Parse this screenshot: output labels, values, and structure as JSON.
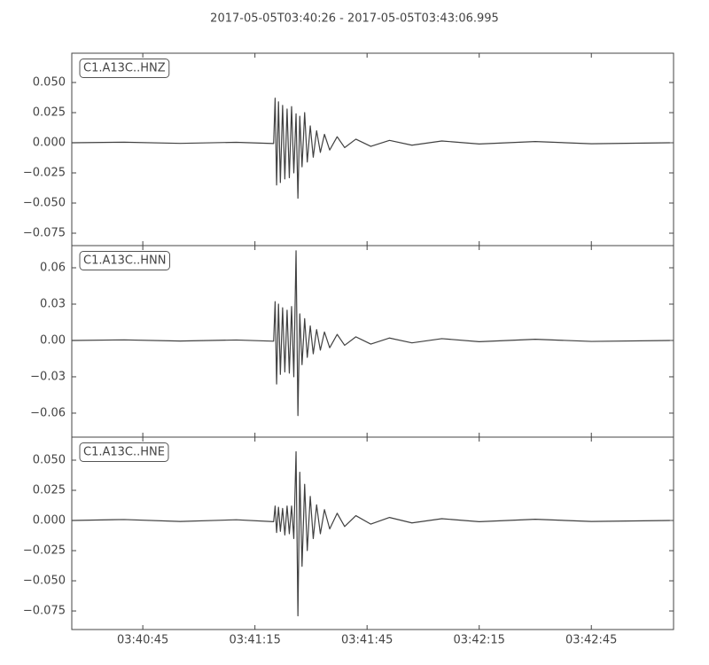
{
  "title": "2017-05-05T03:40:26  -  2017-05-05T03:43:06.995",
  "chart_data": [
    {
      "type": "line",
      "series": [
        {
          "name": "C1.A13C..HNZ",
          "color": "#404040",
          "x": [
            "03:40:26",
            "03:40:40",
            "03:40:55",
            "03:41:10",
            "03:41:20",
            "03:41:20.4",
            "03:41:20.8",
            "03:41:21.3",
            "03:41:21.8",
            "03:41:22.4",
            "03:41:23",
            "03:41:23.6",
            "03:41:24.2",
            "03:41:24.8",
            "03:41:25.4",
            "03:41:26",
            "03:41:26.5",
            "03:41:27",
            "03:41:27.6",
            "03:41:28.3",
            "03:41:29",
            "03:41:29.8",
            "03:41:30.6",
            "03:41:31.5",
            "03:41:32.5",
            "03:41:33.6",
            "03:41:35",
            "03:41:37",
            "03:41:39",
            "03:41:42",
            "03:41:46",
            "03:41:51",
            "03:41:57",
            "03:42:05",
            "03:42:15",
            "03:42:30",
            "03:42:45",
            "03:43:06"
          ],
          "values": [
            0,
            0.0005,
            -0.0005,
            0.0004,
            -0.0006,
            0.037,
            -0.035,
            0.034,
            -0.033,
            0.031,
            -0.03,
            0.028,
            -0.029,
            0.03,
            -0.025,
            0.024,
            -0.046,
            0.022,
            -0.02,
            0.025,
            -0.016,
            0.014,
            -0.012,
            0.01,
            -0.008,
            0.007,
            -0.006,
            0.005,
            -0.004,
            0.003,
            -0.003,
            0.002,
            -0.002,
            0.0015,
            -0.001,
            0.001,
            -0.0008,
            0
          ]
        }
      ],
      "ylim": [
        -0.0853,
        0.0743
      ],
      "yticks": [
        {
          "value": 0.05,
          "label": "0.050"
        },
        {
          "value": 0.025,
          "label": "0.025"
        },
        {
          "value": 0,
          "label": "0.000"
        },
        {
          "value": -0.025,
          "label": "−0.025"
        },
        {
          "value": -0.05,
          "label": "−0.050"
        },
        {
          "value": -0.075,
          "label": "−0.075"
        }
      ]
    },
    {
      "type": "line",
      "series": [
        {
          "name": "C1.A13C..HNN",
          "color": "#404040",
          "x": [
            "03:40:26",
            "03:40:40",
            "03:40:55",
            "03:41:10",
            "03:41:20",
            "03:41:20.4",
            "03:41:20.8",
            "03:41:21.3",
            "03:41:21.8",
            "03:41:22.4",
            "03:41:23",
            "03:41:23.6",
            "03:41:24.2",
            "03:41:24.8",
            "03:41:25.4",
            "03:41:26",
            "03:41:26.5",
            "03:41:27",
            "03:41:27.6",
            "03:41:28.3",
            "03:41:29",
            "03:41:29.8",
            "03:41:30.6",
            "03:41:31.5",
            "03:41:32.5",
            "03:41:33.6",
            "03:41:35",
            "03:41:37",
            "03:41:39",
            "03:41:42",
            "03:41:46",
            "03:41:51",
            "03:41:57",
            "03:42:05",
            "03:42:15",
            "03:42:30",
            "03:42:45",
            "03:43:06"
          ],
          "values": [
            0,
            0.0005,
            -0.0005,
            0.0004,
            -0.0006,
            0.032,
            -0.036,
            0.03,
            -0.028,
            0.027,
            -0.026,
            0.025,
            -0.027,
            0.028,
            -0.03,
            0.074,
            -0.062,
            0.022,
            -0.02,
            0.018,
            -0.014,
            0.012,
            -0.011,
            0.009,
            -0.008,
            0.007,
            -0.006,
            0.005,
            -0.004,
            0.003,
            -0.003,
            0.002,
            -0.002,
            0.0015,
            -0.001,
            0.001,
            -0.0008,
            0
          ]
        }
      ],
      "ylim": [
        -0.0798,
        0.0783
      ],
      "yticks": [
        0.06,
        0.03,
        {
          "value": 0,
          "label": "0.00"
        },
        {
          "value": -0.03,
          "label": "−0.03"
        },
        {
          "value": -0.06,
          "label": "−0.06"
        }
      ]
    },
    {
      "type": "line",
      "series": [
        {
          "name": "C1.A13C..HNE",
          "color": "#404040",
          "x": [
            "03:40:26",
            "03:40:40",
            "03:40:55",
            "03:41:10",
            "03:41:20",
            "03:41:20.4",
            "03:41:20.8",
            "03:41:21.3",
            "03:41:21.8",
            "03:41:22.4",
            "03:41:23",
            "03:41:23.6",
            "03:41:24.2",
            "03:41:24.8",
            "03:41:25.4",
            "03:41:26",
            "03:41:26.5",
            "03:41:27",
            "03:41:27.6",
            "03:41:28.3",
            "03:41:29",
            "03:41:29.8",
            "03:41:30.6",
            "03:41:31.5",
            "03:41:32.5",
            "03:41:33.6",
            "03:41:35",
            "03:41:37",
            "03:41:39",
            "03:41:42",
            "03:41:46",
            "03:41:51",
            "03:41:57",
            "03:42:05",
            "03:42:15",
            "03:42:30",
            "03:42:45",
            "03:43:06"
          ],
          "values": [
            0,
            0.0008,
            -0.0008,
            0.0006,
            -0.001,
            0.012,
            -0.01,
            0.011,
            -0.009,
            0.01,
            -0.012,
            0.012,
            -0.011,
            0.012,
            -0.015,
            0.057,
            -0.079,
            0.04,
            -0.038,
            0.03,
            -0.025,
            0.02,
            -0.015,
            0.013,
            -0.011,
            0.009,
            -0.007,
            0.006,
            -0.005,
            0.004,
            -0.003,
            0.0025,
            -0.002,
            0.0015,
            -0.001,
            0.001,
            -0.0008,
            0
          ]
        }
      ],
      "ylim": [
        -0.0904,
        0.0691
      ],
      "yticks": [
        {
          "value": 0.05,
          "label": "0.050"
        },
        {
          "value": 0.025,
          "label": "0.025"
        },
        {
          "value": 0,
          "label": "0.000"
        },
        {
          "value": -0.025,
          "label": "−0.025"
        },
        {
          "value": -0.05,
          "label": "−0.050"
        },
        {
          "value": -0.075,
          "label": "−0.075"
        }
      ],
      "xlim": [
        "03:40:26",
        "03:43:06.995"
      ],
      "xticks": [
        "03:40:45",
        "03:41:15",
        "03:41:45",
        "03:42:15",
        "03:42:45"
      ]
    }
  ]
}
